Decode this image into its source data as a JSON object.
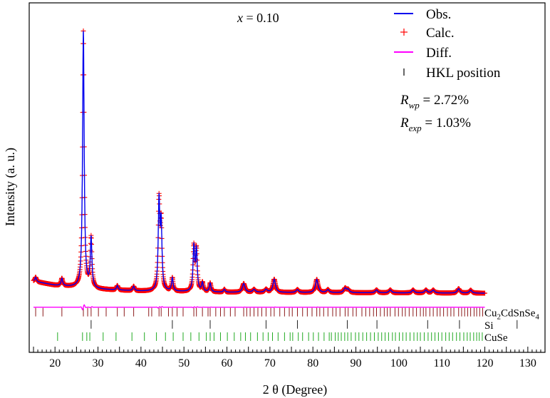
{
  "chart_data": {
    "type": "line",
    "title": "",
    "annotation": {
      "variable": "x",
      "equals": " = ",
      "value": "0.10"
    },
    "xlabel": "2 θ (Degree)",
    "ylabel": "Intensity (a. u.)",
    "xlim": [
      14,
      134
    ],
    "ylim": [
      -20,
      100
    ],
    "xticks": [
      15,
      20,
      25,
      30,
      35,
      40,
      45,
      50,
      55,
      60,
      65,
      70,
      75,
      80,
      85,
      90,
      95,
      100,
      105,
      110,
      115,
      120,
      125,
      130
    ],
    "xtick_labels": [
      "20",
      "30",
      "40",
      "50",
      "60",
      "70",
      "80",
      "90",
      "100",
      "110",
      "120",
      "130"
    ],
    "grid": false,
    "legend_position": "top-right",
    "legend": [
      {
        "label": "Obs.",
        "marker": "line",
        "color": "#0000ee"
      },
      {
        "label": "Calc.",
        "marker": "plus",
        "color": "#ff0000"
      },
      {
        "label": "Diff.",
        "marker": "line",
        "color": "#ff00ff"
      },
      {
        "label": "HKL position",
        "marker": "tick",
        "color": "#000000"
      }
    ],
    "fit_stats": {
      "rwp": {
        "symbol": "R",
        "subscript": "wp",
        "value": " = 2.72%"
      },
      "rexp": {
        "symbol": "R",
        "subscript": "exp",
        "value": " = 1.03%"
      }
    },
    "background": [
      [
        15,
        4.4
      ],
      [
        20,
        3.0
      ],
      [
        30,
        1.6
      ],
      [
        40,
        1.0
      ],
      [
        50,
        0.8
      ],
      [
        60,
        0.6
      ],
      [
        80,
        0.5
      ],
      [
        100,
        0.4
      ],
      [
        120,
        0.3
      ]
    ],
    "peaks": [
      {
        "x": 15.5,
        "h": 1.5
      },
      {
        "x": 21.6,
        "h": 2.5
      },
      {
        "x": 26.6,
        "h": 88
      },
      {
        "x": 28.4,
        "h": 17
      },
      {
        "x": 34.5,
        "h": 1.5
      },
      {
        "x": 38.3,
        "h": 1.5
      },
      {
        "x": 44.2,
        "h": 30
      },
      {
        "x": 44.7,
        "h": 22
      },
      {
        "x": 47.3,
        "h": 4.5
      },
      {
        "x": 52.3,
        "h": 15
      },
      {
        "x": 52.9,
        "h": 14
      },
      {
        "x": 54.3,
        "h": 3
      },
      {
        "x": 56.1,
        "h": 3
      },
      {
        "x": 59.4,
        "h": 1
      },
      {
        "x": 63.9,
        "h": 3
      },
      {
        "x": 66.3,
        "h": 1
      },
      {
        "x": 69.1,
        "h": 1
      },
      {
        "x": 71.0,
        "h": 4.5
      },
      {
        "x": 76.4,
        "h": 1
      },
      {
        "x": 80.9,
        "h": 4.5
      },
      {
        "x": 83.5,
        "h": 1
      },
      {
        "x": 87.5,
        "h": 1.5
      },
      {
        "x": 88.2,
        "h": 1
      },
      {
        "x": 94.8,
        "h": 1
      },
      {
        "x": 98.0,
        "h": 1
      },
      {
        "x": 103.3,
        "h": 1
      },
      {
        "x": 106.3,
        "h": 1
      },
      {
        "x": 108.0,
        "h": 1
      },
      {
        "x": 113.9,
        "h": 1.5
      },
      {
        "x": 116.7,
        "h": 1
      }
    ],
    "peak_width": 0.22,
    "x_range": [
      15,
      120
    ],
    "diff_level": -4.5,
    "hkl_rows": [
      {
        "name": "Cu2CdSnSe4",
        "label_base": "Cu",
        "label_sub1": "2",
        "label_mid": "CdSnSe",
        "label_sub2": "4",
        "color": "#8b1a1a",
        "level": -6.2,
        "positions": [
          15.5,
          17.2,
          21.6,
          26.6,
          27.6,
          28.4,
          30.1,
          31.9,
          34.5,
          36.1,
          38.3,
          41.8,
          42.5,
          44.2,
          44.7,
          46.4,
          47.3,
          48.4,
          49.8,
          52.3,
          52.9,
          54.3,
          55.6,
          56.1,
          57.4,
          58.5,
          59.4,
          60.8,
          61.9,
          63.9,
          64.6,
          65.4,
          66.3,
          67.2,
          68.1,
          69.1,
          70.2,
          71.0,
          72.3,
          73.4,
          74.5,
          75.2,
          76.4,
          77.6,
          78.7,
          79.8,
          80.9,
          81.6,
          82.5,
          83.5,
          84.6,
          85.4,
          86.3,
          87.5,
          88.2,
          89.3,
          90.1,
          91.4,
          92.3,
          93.2,
          94.1,
          94.8,
          95.7,
          96.6,
          97.3,
          98.0,
          99.1,
          99.9,
          100.8,
          101.5,
          102.4,
          103.3,
          104.1,
          105.0,
          105.7,
          106.3,
          107.2,
          108.0,
          108.9,
          109.6,
          110.4,
          111.3,
          112.1,
          112.8,
          113.9,
          114.6,
          115.3,
          116.0,
          116.7,
          117.5,
          118.1,
          118.8,
          119.5
        ]
      },
      {
        "name": "Si",
        "label_base": "Si",
        "label_sub1": "",
        "label_mid": "",
        "label_sub2": "",
        "color": "#222222",
        "level": -10.4,
        "positions": [
          28.4,
          47.3,
          56.1,
          69.1,
          76.4,
          88.0,
          94.9,
          106.7,
          114.1,
          127.5
        ]
      },
      {
        "name": "CuSe",
        "label_base": "CuSe",
        "label_sub1": "",
        "label_mid": "",
        "label_sub2": "",
        "color": "#22aa22",
        "level": -14.6,
        "positions": [
          20.6,
          26.4,
          27.4,
          28.1,
          31.2,
          34.2,
          37.9,
          40.8,
          43.6,
          45.7,
          47.5,
          49.8,
          51.6,
          53.5,
          55.2,
          56.1,
          57.0,
          58.5,
          60.1,
          61.7,
          63.2,
          64.3,
          65.5,
          67.1,
          68.4,
          69.6,
          70.6,
          71.9,
          73.4,
          74.7,
          75.3,
          76.6,
          77.6,
          79.0,
          80.1,
          81.3,
          82.6,
          83.8,
          84.3,
          85.2,
          85.9,
          86.6,
          87.4,
          88.1,
          88.9,
          89.9,
          90.7,
          91.6,
          92.5,
          93.4,
          94.3,
          95.2,
          96.0,
          96.8,
          97.6,
          98.5,
          99.2,
          100.1,
          100.9,
          101.7,
          102.6,
          103.5,
          104.3,
          105.0,
          105.9,
          106.8,
          107.6,
          108.4,
          109.2,
          110.0,
          110.9,
          111.7,
          112.5,
          113.4,
          114.2,
          115.1,
          115.9,
          116.6,
          117.4,
          118.1,
          118.7,
          119.4
        ]
      }
    ]
  }
}
